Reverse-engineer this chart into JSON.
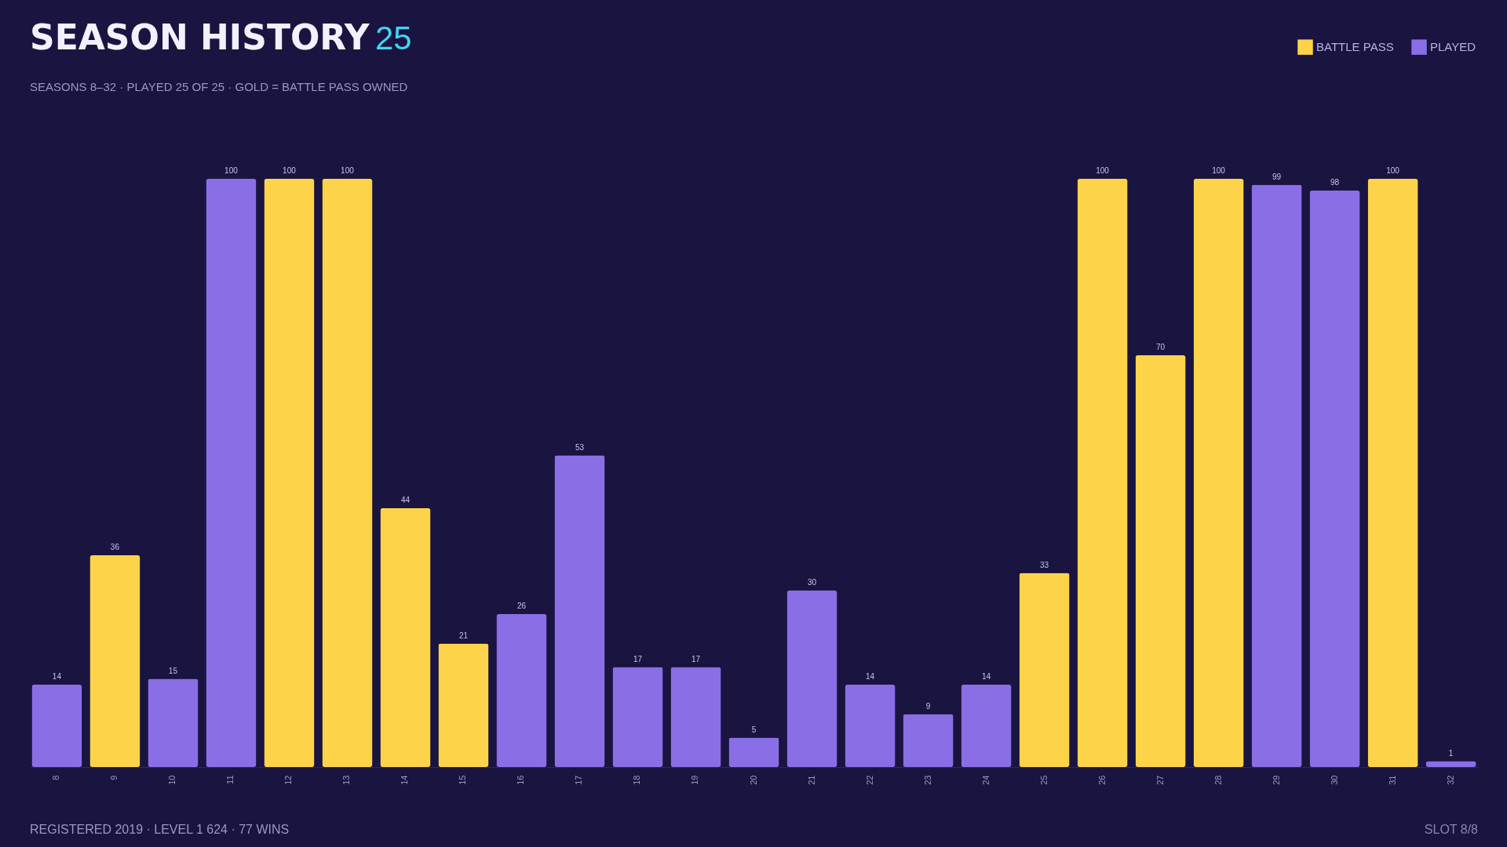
{
  "chart_data": {
    "type": "bar",
    "title": "SEASON HISTORY",
    "subtitle": "SEASONS 8–32 · PLAYED 25 OF 25 · GOLD = BATTLE PASS OWNED",
    "annotations": [
      "25",
      "REGISTERED 2019 · LEVEL 1 624 · 77 WINS",
      "SLOT 8/8"
    ],
    "categories": [
      "8",
      "9",
      "10",
      "11",
      "12",
      "13",
      "14",
      "15",
      "16",
      "17",
      "18",
      "19",
      "20",
      "21",
      "22",
      "23",
      "24",
      "25",
      "26",
      "27",
      "28",
      "29",
      "30",
      "31",
      "32"
    ],
    "series": [
      {
        "name": "BATTLE PASS",
        "color": "#fdd449",
        "values": [
          null,
          36,
          null,
          null,
          100,
          100,
          44,
          21,
          null,
          null,
          null,
          null,
          null,
          null,
          null,
          null,
          null,
          33,
          100,
          70,
          100,
          null,
          null,
          100,
          null
        ]
      },
      {
        "name": "PLAYED",
        "color": "#8a6ee6",
        "values": [
          14,
          null,
          15,
          100,
          null,
          null,
          null,
          null,
          26,
          53,
          17,
          17,
          5,
          30,
          14,
          9,
          14,
          null,
          null,
          null,
          null,
          99,
          98,
          null,
          1
        ]
      }
    ],
    "ylim": [
      0,
      100
    ],
    "tick_labels": "x",
    "data_labels": true,
    "legend": "top right",
    "grid": false
  }
}
